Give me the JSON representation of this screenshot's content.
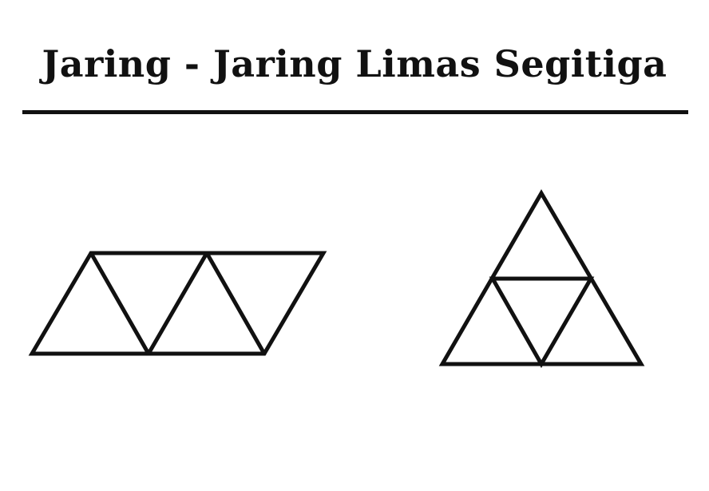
{
  "title": "Jaring - Jaring Limas Segitiga",
  "colors": {
    "ink": "#111111",
    "background": "#ffffff"
  }
}
